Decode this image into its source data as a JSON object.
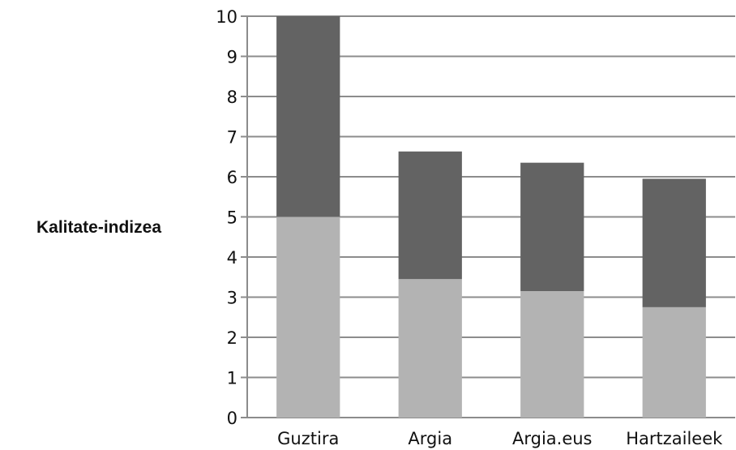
{
  "chart_data": {
    "type": "bar",
    "stacked": true,
    "title": "",
    "xlabel": "",
    "ylabel": "Kalitate-indizea",
    "ylim": [
      0,
      10
    ],
    "yticks": [
      0,
      1,
      2,
      3,
      4,
      5,
      6,
      7,
      8,
      9,
      10
    ],
    "grid": true,
    "categories": [
      "Guztira",
      "Argia",
      "Argia.eus",
      "Hartzaileek"
    ],
    "series": [
      {
        "values": [
          5.0,
          3.45,
          3.15,
          2.75
        ],
        "color": "#b3b3b3"
      },
      {
        "values": [
          5.0,
          3.18,
          3.2,
          3.2
        ],
        "color": "#636363"
      }
    ]
  }
}
